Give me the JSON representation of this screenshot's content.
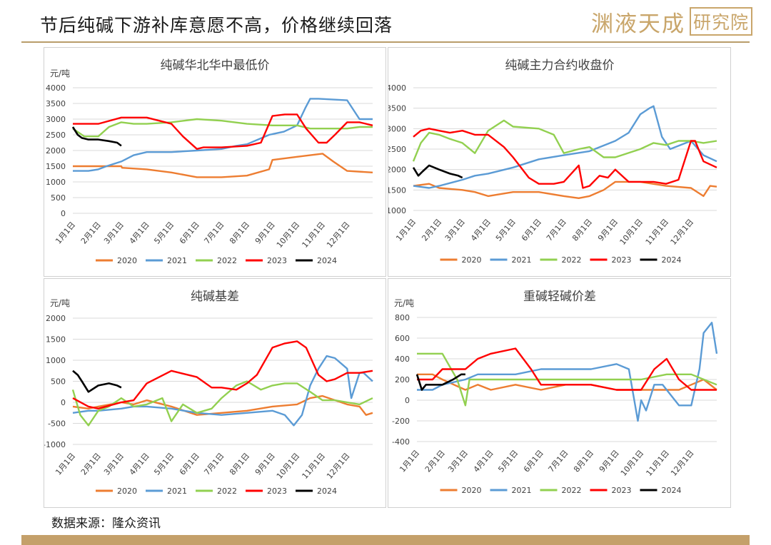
{
  "header": {
    "title": "节后纯碱下游补库意愿不高，价格继续回落",
    "brand_main": "渊液天成",
    "brand_box": "研究院"
  },
  "source": "数据来源：隆众资讯",
  "colors": {
    "2020": "#ed7d31",
    "2021": "#5b9bd5",
    "2022": "#92d050",
    "2023": "#ff0000",
    "2024": "#000000",
    "brand": "#c9a66b"
  },
  "chart_data": [
    {
      "id": "chart1",
      "type": "line",
      "title": "纯碱华北华中最低价",
      "unit": "元/吨",
      "ylim": [
        0,
        4000
      ],
      "yticks": [
        0,
        500,
        1000,
        1500,
        2000,
        2500,
        3000,
        3500,
        4000
      ],
      "xticks": [
        "1月1日",
        "2月1日",
        "3月1日",
        "4月1日",
        "5月1日",
        "6月1日",
        "7月1日",
        "8月1日",
        "9月1日",
        "10月1日",
        "11月1日",
        "12月1日"
      ],
      "series": [
        {
          "name": "2020",
          "x": [
            1,
            32,
            60,
            61,
            91,
            121,
            152,
            182,
            213,
            240,
            244,
            274,
            305,
            318,
            335,
            366
          ],
          "y": [
            1500,
            1500,
            1500,
            1450,
            1400,
            1300,
            1150,
            1150,
            1200,
            1400,
            1700,
            1800,
            1900,
            1650,
            1350,
            1300
          ]
        },
        {
          "name": "2021",
          "x": [
            1,
            20,
            32,
            42,
            60,
            75,
            91,
            121,
            152,
            182,
            200,
            213,
            240,
            258,
            274,
            284,
            290,
            300,
            335,
            350,
            366
          ],
          "y": [
            1350,
            1350,
            1400,
            1500,
            1650,
            1850,
            1950,
            1950,
            2000,
            2050,
            2150,
            2200,
            2500,
            2600,
            2800,
            3350,
            3650,
            3650,
            3600,
            3000,
            3000
          ]
        },
        {
          "name": "2022",
          "x": [
            1,
            15,
            32,
            45,
            60,
            75,
            91,
            121,
            152,
            182,
            213,
            244,
            274,
            290,
            305,
            320,
            335,
            350,
            366
          ],
          "y": [
            2700,
            2450,
            2450,
            2750,
            2900,
            2850,
            2850,
            2900,
            3000,
            2950,
            2850,
            2800,
            2800,
            2700,
            2700,
            2700,
            2700,
            2750,
            2750
          ]
        },
        {
          "name": "2023",
          "x": [
            1,
            32,
            60,
            75,
            91,
            121,
            135,
            152,
            160,
            182,
            213,
            230,
            244,
            259,
            274,
            285,
            300,
            310,
            320,
            335,
            350,
            366
          ],
          "y": [
            2850,
            2850,
            3050,
            3050,
            3050,
            2850,
            2450,
            2050,
            2100,
            2100,
            2150,
            2250,
            3100,
            3150,
            3150,
            2700,
            2250,
            2250,
            2500,
            2900,
            2900,
            2800
          ]
        },
        {
          "name": "2024",
          "x": [
            1,
            7,
            12,
            20,
            32,
            45,
            55,
            60
          ],
          "y": [
            2750,
            2500,
            2400,
            2350,
            2350,
            2300,
            2250,
            2150
          ]
        }
      ]
    },
    {
      "id": "chart2",
      "type": "line",
      "title": "纯碱主力合约收盘价",
      "unit": "",
      "ylim": [
        1000,
        4000
      ],
      "yticks": [
        1000,
        1500,
        2000,
        2500,
        3000,
        3500,
        4000
      ],
      "xticks": [
        "1月1日",
        "2月1日",
        "3月1日",
        "4月1日",
        "5月1日",
        "6月1日",
        "7月1日",
        "8月1日",
        "9月1日",
        "10月1日",
        "11月1日",
        "12月1日"
      ],
      "series": [
        {
          "name": "2020",
          "x": [
            1,
            20,
            32,
            60,
            75,
            91,
            121,
            152,
            182,
            200,
            213,
            230,
            244,
            274,
            305,
            335,
            350,
            358,
            366
          ],
          "y": [
            1600,
            1650,
            1550,
            1500,
            1450,
            1350,
            1450,
            1450,
            1350,
            1300,
            1350,
            1500,
            1700,
            1700,
            1600,
            1550,
            1350,
            1600,
            1580
          ]
        },
        {
          "name": "2021",
          "x": [
            1,
            20,
            32,
            60,
            75,
            91,
            121,
            152,
            182,
            213,
            244,
            260,
            274,
            285,
            290,
            300,
            310,
            335,
            350,
            366
          ],
          "y": [
            1600,
            1550,
            1600,
            1750,
            1850,
            1900,
            2050,
            2250,
            2350,
            2450,
            2700,
            2900,
            3350,
            3500,
            3550,
            2800,
            2500,
            2700,
            2350,
            2200
          ]
        },
        {
          "name": "2022",
          "x": [
            1,
            10,
            20,
            32,
            45,
            60,
            75,
            91,
            110,
            121,
            152,
            170,
            182,
            200,
            213,
            230,
            244,
            274,
            290,
            305,
            320,
            335,
            350,
            366
          ],
          "y": [
            2200,
            2650,
            2900,
            2850,
            2750,
            2650,
            2400,
            2950,
            3200,
            3050,
            3000,
            2850,
            2400,
            2500,
            2550,
            2300,
            2300,
            2500,
            2650,
            2600,
            2700,
            2700,
            2650,
            2700
          ]
        },
        {
          "name": "2023",
          "x": [
            1,
            10,
            20,
            32,
            45,
            60,
            75,
            91,
            110,
            121,
            140,
            152,
            170,
            182,
            200,
            205,
            213,
            225,
            235,
            244,
            260,
            274,
            290,
            305,
            320,
            335,
            340,
            350,
            366
          ],
          "y": [
            2800,
            2950,
            3000,
            2950,
            2900,
            2950,
            2850,
            2850,
            2550,
            2300,
            1800,
            1650,
            1650,
            1700,
            2100,
            1550,
            1600,
            1850,
            1800,
            2000,
            1700,
            1700,
            1700,
            1650,
            1750,
            2700,
            2700,
            2200,
            2050
          ]
        },
        {
          "name": "2024",
          "x": [
            1,
            7,
            12,
            20,
            32,
            45,
            55,
            60
          ],
          "y": [
            2050,
            1850,
            1950,
            2100,
            2000,
            1900,
            1850,
            1800
          ]
        }
      ]
    },
    {
      "id": "chart3",
      "type": "line",
      "title": "纯碱基差",
      "unit": "元/吨",
      "ylim": [
        -1000,
        2000
      ],
      "yticks": [
        -1000,
        -500,
        0,
        500,
        1000,
        1500,
        2000
      ],
      "xticks": [
        "1月1日",
        "2月1日",
        "3月1日",
        "4月1日",
        "5月1日",
        "6月1日",
        "7月1日",
        "8月1日",
        "9月1日",
        "10月1日",
        "11月1日",
        "12月1日"
      ],
      "series": [
        {
          "name": "2020",
          "x": [
            1,
            20,
            32,
            60,
            75,
            91,
            121,
            152,
            182,
            213,
            244,
            274,
            290,
            305,
            335,
            350,
            358,
            366
          ],
          "y": [
            -100,
            -150,
            -100,
            0,
            -50,
            50,
            -100,
            -300,
            -250,
            -200,
            -100,
            -50,
            100,
            150,
            -50,
            -100,
            -300,
            -250
          ]
        },
        {
          "name": "2021",
          "x": [
            1,
            20,
            32,
            60,
            75,
            91,
            121,
            152,
            182,
            213,
            244,
            259,
            270,
            280,
            290,
            300,
            310,
            320,
            335,
            340,
            350,
            355,
            366
          ],
          "y": [
            -250,
            -200,
            -200,
            -150,
            -100,
            -100,
            -150,
            -250,
            -300,
            -250,
            -200,
            -300,
            -550,
            -300,
            400,
            800,
            1100,
            1050,
            800,
            100,
            700,
            700,
            500
          ]
        },
        {
          "name": "2022",
          "x": [
            1,
            10,
            20,
            32,
            45,
            60,
            75,
            91,
            110,
            121,
            135,
            152,
            170,
            182,
            200,
            213,
            230,
            244,
            259,
            274,
            290,
            305,
            320,
            335,
            350,
            366
          ],
          "y": [
            300,
            -300,
            -550,
            -200,
            -100,
            100,
            -100,
            -50,
            100,
            -450,
            -50,
            -250,
            -150,
            100,
            400,
            500,
            300,
            400,
            450,
            450,
            250,
            50,
            50,
            0,
            -50,
            100
          ]
        },
        {
          "name": "2023",
          "x": [
            1,
            20,
            32,
            60,
            75,
            91,
            121,
            152,
            170,
            182,
            200,
            213,
            225,
            244,
            259,
            274,
            285,
            300,
            310,
            320,
            335,
            350,
            366
          ],
          "y": [
            100,
            -100,
            -150,
            0,
            50,
            450,
            750,
            600,
            350,
            350,
            300,
            450,
            650,
            1300,
            1400,
            1450,
            1300,
            650,
            500,
            550,
            700,
            700,
            750
          ]
        },
        {
          "name": "2024",
          "x": [
            1,
            7,
            12,
            20,
            32,
            45,
            55,
            60
          ],
          "y": [
            750,
            650,
            500,
            250,
            400,
            450,
            400,
            350
          ]
        }
      ]
    },
    {
      "id": "chart4",
      "type": "line",
      "title": "重碱轻碱价差",
      "unit": "元/吨",
      "ylim": [
        -400,
        800
      ],
      "yticks": [
        -400,
        -200,
        0,
        200,
        400,
        600,
        800
      ],
      "xticks": [
        "1月1日",
        "2月1日",
        "3月1日",
        "4月1日",
        "5月1日",
        "6月1日",
        "7月1日",
        "8月1日",
        "9月1日",
        "10月1日",
        "11月1日",
        "12月1日"
      ],
      "series": [
        {
          "name": "2020",
          "x": [
            1,
            20,
            32,
            60,
            75,
            91,
            121,
            152,
            182,
            213,
            244,
            274,
            305,
            320,
            335,
            350,
            366
          ],
          "y": [
            250,
            250,
            200,
            100,
            150,
            100,
            150,
            100,
            150,
            150,
            100,
            100,
            100,
            100,
            150,
            200,
            100
          ]
        },
        {
          "name": "2021",
          "x": [
            1,
            20,
            32,
            60,
            75,
            91,
            121,
            152,
            182,
            213,
            244,
            259,
            270,
            274,
            280,
            290,
            300,
            320,
            335,
            345,
            350,
            360,
            366
          ],
          "y": [
            100,
            100,
            150,
            200,
            250,
            250,
            250,
            300,
            300,
            300,
            350,
            300,
            -200,
            0,
            -100,
            150,
            150,
            -50,
            -50,
            300,
            650,
            750,
            450
          ]
        },
        {
          "name": "2022",
          "x": [
            1,
            20,
            32,
            50,
            60,
            65,
            75,
            91,
            121,
            152,
            182,
            213,
            244,
            274,
            305,
            335,
            366
          ],
          "y": [
            450,
            450,
            450,
            200,
            -50,
            200,
            200,
            200,
            200,
            200,
            200,
            200,
            200,
            200,
            250,
            250,
            150
          ]
        },
        {
          "name": "2023",
          "x": [
            1,
            20,
            32,
            60,
            75,
            91,
            121,
            140,
            152,
            182,
            213,
            244,
            274,
            290,
            305,
            320,
            335,
            350,
            366
          ],
          "y": [
            200,
            200,
            300,
            300,
            400,
            450,
            500,
            300,
            150,
            150,
            150,
            100,
            100,
            300,
            400,
            200,
            100,
            100,
            100
          ]
        },
        {
          "name": "2024",
          "x": [
            1,
            7,
            12,
            20,
            32,
            45,
            55,
            60
          ],
          "y": [
            250,
            100,
            150,
            150,
            150,
            200,
            250,
            250
          ]
        }
      ]
    }
  ]
}
